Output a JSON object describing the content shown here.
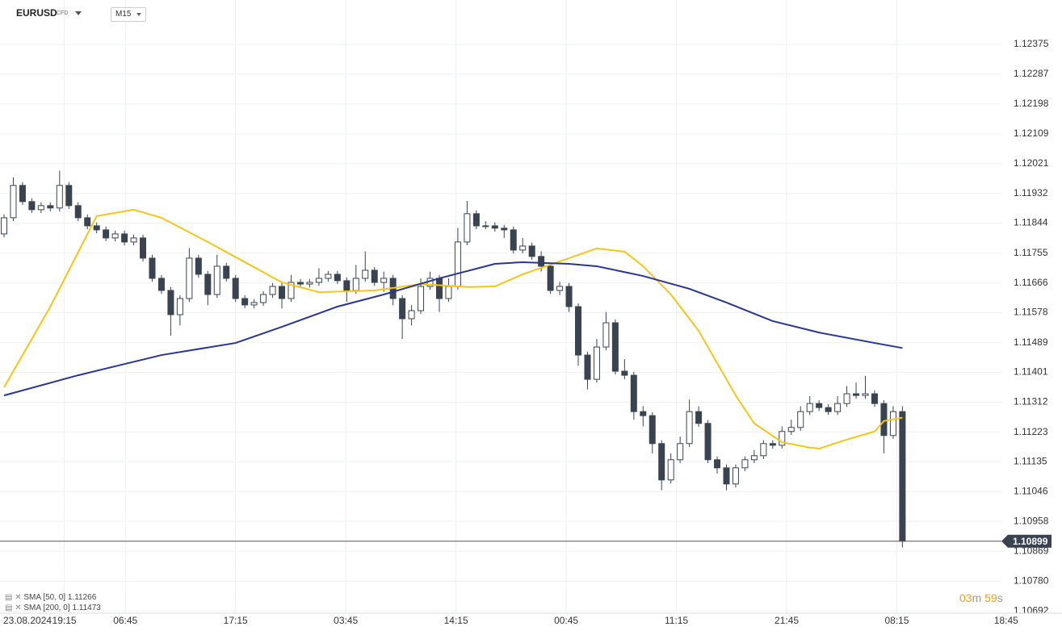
{
  "header": {
    "symbol": "EURUSD",
    "instrument": "CFD",
    "interval": "M15"
  },
  "countdown": {
    "minutes": "03",
    "min_unit": "m",
    "seconds": "59",
    "sec_unit": "s"
  },
  "chart_data": {
    "type": "candlestick",
    "date_label": "23.08.2024",
    "ylim": [
      1.10685,
      1.12507
    ],
    "yticks": [
      1.12375,
      1.12287,
      1.12198,
      1.12109,
      1.12021,
      1.11932,
      1.11844,
      1.11755,
      1.11666,
      1.11578,
      1.11489,
      1.11401,
      1.11312,
      1.11223,
      1.11135,
      1.11046,
      1.10958,
      1.10869,
      {
        "value": 1.1078,
        "label": "1.10780"
      },
      1.10692
    ],
    "xlim": [
      0,
      109
    ],
    "xticks": [
      {
        "value": 6.5,
        "label": "19:15"
      },
      {
        "value": 13.1,
        "label": "06:45"
      },
      {
        "value": 25,
        "label": "17:15"
      },
      {
        "value": 36.9,
        "label": "03:45"
      },
      {
        "value": 48.8,
        "label": "14:15"
      },
      {
        "value": 60.7,
        "label": "00:45"
      },
      {
        "value": 72.6,
        "label": "11:15"
      },
      {
        "value": 84.5,
        "label": "21:45"
      },
      {
        "value": 96.4,
        "label": "08:15"
      },
      {
        "value": 108.2,
        "label": "18:45"
      }
    ],
    "grid": true,
    "candle_color": "#3a4450",
    "candles": {
      "open": [
        1.11812,
        1.1186,
        1.11956,
        1.11908,
        1.11884,
        1.11896,
        1.11889,
        1.11956,
        1.11896,
        1.1186,
        1.11836,
        1.11824,
        1.118,
        1.11812,
        1.11788,
        1.118,
        1.1174,
        1.1168,
        1.11644,
        1.11572,
        1.1162,
        1.1174,
        1.11692,
        1.11632,
        1.11716,
        1.1168,
        1.1162,
        1.11601,
        1.11608,
        1.11632,
        1.11656,
        1.1162,
        1.11668,
        1.11663,
        1.11668,
        1.1168,
        1.11692,
        1.11673,
        1.11644,
        1.1168,
        1.11704,
        1.11668,
        1.1168,
        1.1162,
        1.1156,
        1.11584,
        1.11656,
        1.1168,
        1.1162,
        1.11656,
        1.11788,
        1.11872,
        1.11836,
        1.11836,
        1.11829,
        1.11824,
        1.11764,
        1.11776,
        1.11745,
        1.11716,
        1.11644,
        1.11656,
        1.11596,
        1.11452,
        1.1138,
        1.11476,
        1.11548,
        1.11404,
        1.11392,
        1.11284,
        1.11272,
        1.11189,
        1.11081,
        1.11141,
        1.11189,
        1.11284,
        1.11249,
        1.11141,
        1.11117,
        1.11069,
        1.11117,
        1.11141,
        1.11153,
        1.11189,
        1.11184,
        1.11225,
        1.11237,
        1.11284,
        1.11308,
        1.11296,
        1.11284,
        1.11308,
        1.11337,
        1.11332,
        1.11337,
        1.11308,
        1.11213,
        1.11284
      ],
      "high": [
        1.1187,
        1.1198,
        1.11966,
        1.11918,
        1.11906,
        1.11906,
        1.12,
        1.11966,
        1.11906,
        1.1187,
        1.11846,
        1.11834,
        1.11822,
        1.11822,
        1.1181,
        1.1181,
        1.1175,
        1.1169,
        1.11654,
        1.1163,
        1.1177,
        1.1175,
        1.11702,
        1.1175,
        1.11726,
        1.1169,
        1.1163,
        1.11618,
        1.11642,
        1.11666,
        1.11666,
        1.1169,
        1.11678,
        1.11678,
        1.1171,
        1.11702,
        1.11702,
        1.11683,
        1.1172,
        1.1176,
        1.11714,
        1.117,
        1.1169,
        1.1163,
        1.116,
        1.1168,
        1.117,
        1.1169,
        1.1168,
        1.1183,
        1.1191,
        1.11882,
        1.1185,
        1.11846,
        1.11839,
        1.11834,
        1.118,
        1.11786,
        1.1176,
        1.11726,
        1.1167,
        1.11666,
        1.11606,
        1.11462,
        1.115,
        1.1158,
        1.11558,
        1.1144,
        1.11402,
        1.113,
        1.11282,
        1.11199,
        1.1116,
        1.1121,
        1.1132,
        1.113,
        1.11259,
        1.11151,
        1.11127,
        1.11127,
        1.11151,
        1.1117,
        1.11199,
        1.11199,
        1.1124,
        1.1126,
        1.113,
        1.1133,
        1.11318,
        1.11306,
        1.1133,
        1.1136,
        1.1137,
        1.1139,
        1.11347,
        1.11318,
        1.113,
        1.113
      ],
      "low": [
        1.11802,
        1.1185,
        1.11898,
        1.11874,
        1.11874,
        1.11879,
        1.11879,
        1.11886,
        1.1185,
        1.11826,
        1.11814,
        1.1179,
        1.1179,
        1.11778,
        1.11778,
        1.1173,
        1.1167,
        1.11634,
        1.1151,
        1.1154,
        1.1161,
        1.11682,
        1.116,
        1.11622,
        1.1167,
        1.1161,
        1.11591,
        1.11591,
        1.11598,
        1.11622,
        1.1159,
        1.1161,
        1.11653,
        1.11653,
        1.11658,
        1.1167,
        1.11663,
        1.1161,
        1.11634,
        1.1167,
        1.11658,
        1.1164,
        1.116,
        1.115,
        1.1154,
        1.11574,
        1.11646,
        1.1158,
        1.1161,
        1.11646,
        1.11778,
        1.11826,
        1.11826,
        1.11819,
        1.118,
        1.11754,
        1.11754,
        1.11735,
        1.117,
        1.11634,
        1.1163,
        1.1158,
        1.1142,
        1.1135,
        1.1137,
        1.11466,
        1.11394,
        1.1138,
        1.1126,
        1.1124,
        1.1116,
        1.1105,
        1.11071,
        1.11131,
        1.11179,
        1.11239,
        1.11131,
        1.111,
        1.1105,
        1.11059,
        1.11107,
        1.11131,
        1.11143,
        1.11174,
        1.11174,
        1.11215,
        1.11227,
        1.11274,
        1.11286,
        1.11274,
        1.11274,
        1.11298,
        1.11322,
        1.11322,
        1.11298,
        1.1116,
        1.11203,
        1.1088
      ],
      "close": [
        1.1186,
        1.11956,
        1.11908,
        1.11884,
        1.11896,
        1.11889,
        1.11956,
        1.11896,
        1.1186,
        1.11836,
        1.11824,
        1.118,
        1.11812,
        1.11788,
        1.118,
        1.1174,
        1.1168,
        1.11644,
        1.11572,
        1.1162,
        1.1174,
        1.11692,
        1.11632,
        1.11716,
        1.1168,
        1.1162,
        1.11601,
        1.11608,
        1.11632,
        1.11656,
        1.1162,
        1.11668,
        1.11663,
        1.11668,
        1.1168,
        1.11692,
        1.11673,
        1.11644,
        1.1168,
        1.11704,
        1.11668,
        1.1168,
        1.1162,
        1.1156,
        1.11584,
        1.11656,
        1.1168,
        1.1162,
        1.11656,
        1.11788,
        1.11872,
        1.11836,
        1.11836,
        1.11829,
        1.11824,
        1.11764,
        1.11776,
        1.11745,
        1.11716,
        1.11644,
        1.11656,
        1.11596,
        1.11452,
        1.1138,
        1.11476,
        1.11548,
        1.11404,
        1.11392,
        1.11284,
        1.11272,
        1.11189,
        1.11081,
        1.11141,
        1.11189,
        1.11284,
        1.11249,
        1.11141,
        1.11117,
        1.11069,
        1.11117,
        1.11141,
        1.11153,
        1.11189,
        1.11184,
        1.11225,
        1.11237,
        1.11284,
        1.11308,
        1.11296,
        1.11284,
        1.11308,
        1.11337,
        1.11332,
        1.11337,
        1.11308,
        1.11213,
        1.11284,
        1.10899
      ]
    },
    "series": [
      {
        "name": "SMA [50, 0]",
        "color": "#f5c518",
        "x": [
          0,
          5,
          10,
          14,
          17,
          22,
          26,
          30,
          34,
          40,
          45,
          50,
          53,
          56,
          61,
          64,
          67,
          69,
          72,
          75,
          77,
          79,
          81,
          84,
          87,
          88,
          91,
          94,
          95,
          97
        ],
        "values": [
          1.11356,
          1.11596,
          1.11865,
          1.11884,
          1.1186,
          1.11788,
          1.11728,
          1.11668,
          1.11639,
          1.11644,
          1.11663,
          1.11654,
          1.11656,
          1.11692,
          1.1174,
          1.11769,
          1.11759,
          1.11716,
          1.11632,
          1.11524,
          1.11428,
          1.11332,
          1.11249,
          1.11193,
          1.11177,
          1.11174,
          1.11201,
          1.11225,
          1.11256,
          1.11266
        ]
      },
      {
        "name": "SMA [200, 0]",
        "color": "#283593",
        "x": [
          0,
          8,
          17,
          25,
          30,
          36,
          41,
          47,
          53,
          56,
          61,
          64,
          69,
          74,
          78,
          83,
          88,
          94,
          97
        ],
        "values": [
          1.11332,
          1.11392,
          1.11452,
          1.11488,
          1.11536,
          1.11596,
          1.11632,
          1.1168,
          1.11723,
          1.11728,
          1.11723,
          1.11716,
          1.11687,
          1.11649,
          1.11608,
          1.11553,
          1.11519,
          1.11488,
          1.11473
        ]
      }
    ]
  }
}
